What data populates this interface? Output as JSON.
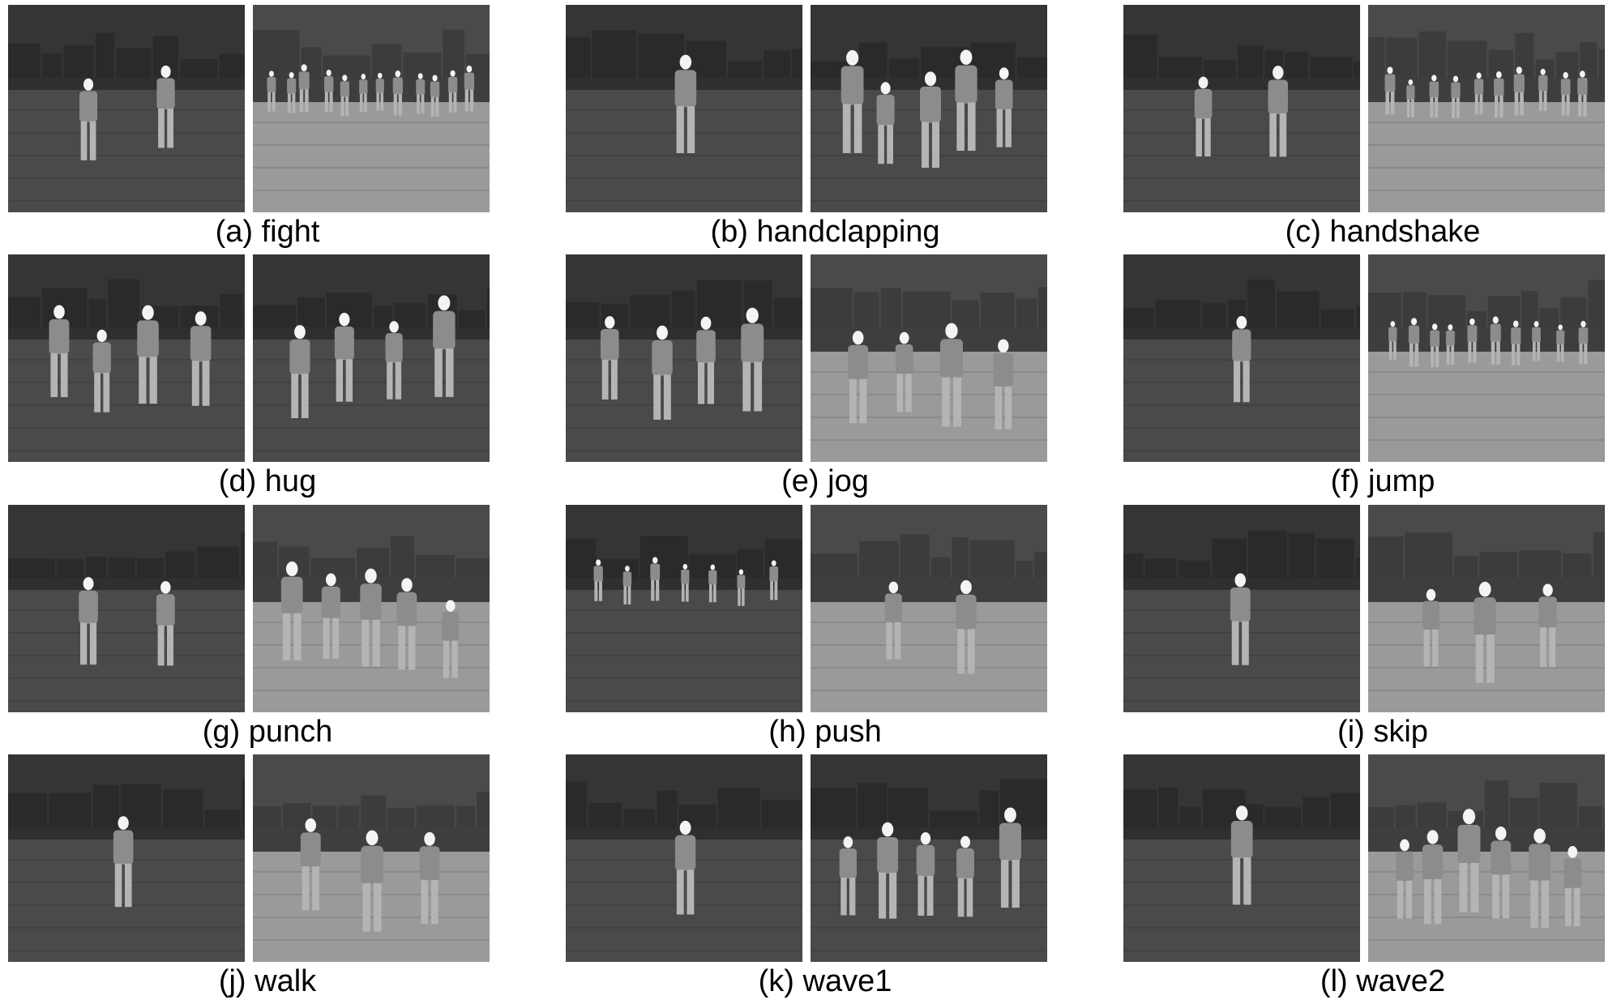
{
  "figure": {
    "panels": [
      {
        "id": "a",
        "caption": "(a) fight",
        "frames": [
          {
            "people": 2,
            "scene": "dark"
          },
          {
            "people": 12,
            "scene": "bright"
          }
        ]
      },
      {
        "id": "b",
        "caption": "(b) handclapping",
        "frames": [
          {
            "people": 1,
            "scene": "dark"
          },
          {
            "people": 5,
            "scene": "dark"
          }
        ]
      },
      {
        "id": "c",
        "caption": "(c) handshake",
        "frames": [
          {
            "people": 2,
            "scene": "dark"
          },
          {
            "people": 10,
            "scene": "bright"
          }
        ]
      },
      {
        "id": "d",
        "caption": "(d) hug",
        "frames": [
          {
            "people": 4,
            "scene": "dark"
          },
          {
            "people": 4,
            "scene": "dark"
          }
        ]
      },
      {
        "id": "e",
        "caption": "(e) jog",
        "frames": [
          {
            "people": 4,
            "scene": "dark"
          },
          {
            "people": 4,
            "scene": "bright"
          }
        ]
      },
      {
        "id": "f",
        "caption": "(f) jump",
        "frames": [
          {
            "people": 1,
            "scene": "dark"
          },
          {
            "people": 10,
            "scene": "bright"
          }
        ]
      },
      {
        "id": "g",
        "caption": "(g) punch",
        "frames": [
          {
            "people": 2,
            "scene": "dark"
          },
          {
            "people": 5,
            "scene": "bright"
          }
        ]
      },
      {
        "id": "h",
        "caption": "(h) push",
        "frames": [
          {
            "people": 7,
            "scene": "dark"
          },
          {
            "people": 2,
            "scene": "bright"
          }
        ]
      },
      {
        "id": "i",
        "caption": "(i) skip",
        "frames": [
          {
            "people": 1,
            "scene": "dark"
          },
          {
            "people": 3,
            "scene": "bright"
          }
        ]
      },
      {
        "id": "j",
        "caption": "(j) walk",
        "frames": [
          {
            "people": 1,
            "scene": "dark"
          },
          {
            "people": 3,
            "scene": "bright"
          }
        ]
      },
      {
        "id": "k",
        "caption": "(k) wave1",
        "frames": [
          {
            "people": 1,
            "scene": "dark"
          },
          {
            "people": 5,
            "scene": "dark"
          }
        ]
      },
      {
        "id": "l",
        "caption": "(l) wave2",
        "frames": [
          {
            "people": 1,
            "scene": "dark"
          },
          {
            "people": 6,
            "scene": "bright"
          }
        ]
      }
    ]
  }
}
